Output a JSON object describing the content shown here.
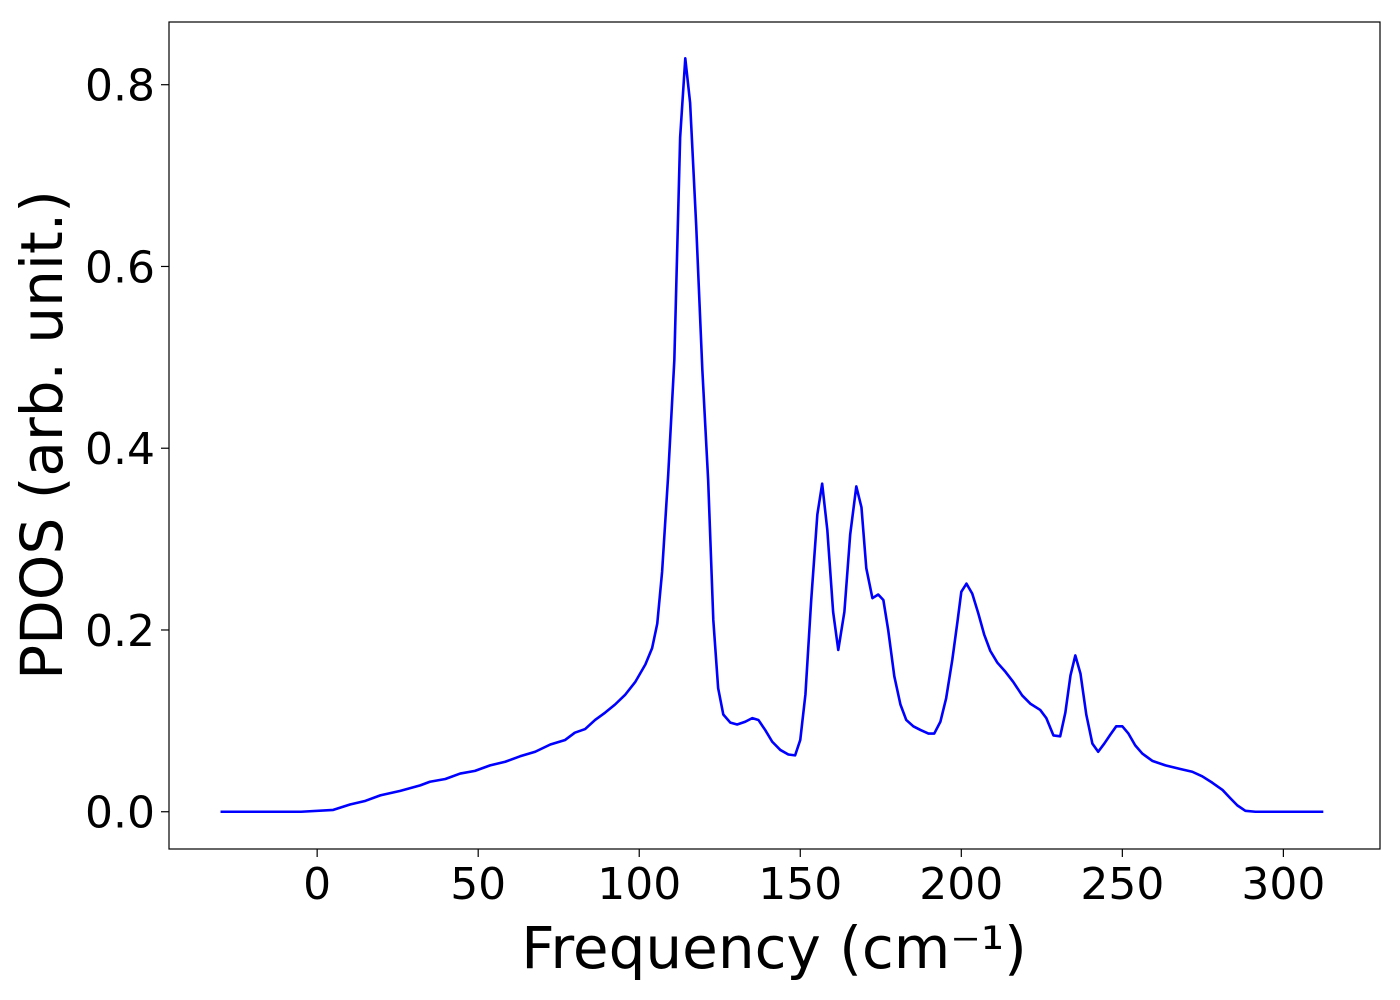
{
  "chart_data": {
    "type": "line",
    "xlabel": "Frequency (cm⁻¹)",
    "ylabel": "PDOS (arb. unit.)",
    "xlim": [
      -46,
      330
    ],
    "ylim": [
      -0.041,
      0.869
    ],
    "xticks": [
      0,
      50,
      100,
      150,
      200,
      250,
      300
    ],
    "yticks": [
      {
        "value": 0,
        "label": "0.0"
      },
      {
        "value": 0.2,
        "label": "0.2"
      },
      {
        "value": 0.4,
        "label": "0.4"
      },
      {
        "value": 0.6,
        "label": "0.6"
      },
      {
        "value": 0.8,
        "label": "0.8"
      }
    ],
    "color": "#0000ff",
    "x": [
      -30,
      -5,
      5,
      10.2,
      15,
      19.6,
      25.8,
      32,
      35,
      39.8,
      44.4,
      49,
      53.7,
      58.4,
      63,
      67.7,
      72.4,
      77,
      80,
      83.2,
      86.3,
      89.4,
      92.5,
      95.7,
      98.8,
      101.9,
      104,
      105.6,
      107.1,
      109,
      110.9,
      112.7,
      114.3,
      115.8,
      117.7,
      119.6,
      121.4,
      123,
      124.5,
      126.1,
      128.3,
      130.4,
      132.9,
      135.1,
      137,
      139.1,
      141.3,
      143.8,
      146.3,
      148.4,
      150,
      151.6,
      153.4,
      155.3,
      156.8,
      158.4,
      160.2,
      161.8,
      163.7,
      165.5,
      167.4,
      169,
      170.5,
      172.4,
      174.2,
      175.8,
      177.3,
      179.2,
      181.1,
      182.9,
      185.1,
      187.3,
      189.8,
      191.6,
      193.5,
      195.3,
      197.2,
      198.8,
      200,
      201.6,
      203.4,
      205.3,
      207.1,
      209,
      211.2,
      213.7,
      216.1,
      218.9,
      221.4,
      224.5,
      226.4,
      228.6,
      230.7,
      232.3,
      233.9,
      235.4,
      237,
      238.8,
      240.7,
      242.5,
      244.4,
      246.3,
      248.1,
      250,
      251.9,
      254,
      256.2,
      259.3,
      263.4,
      268,
      271.7,
      274.8,
      277.9,
      281.1,
      283.5,
      285.7,
      288.2,
      291.3,
      312.4
    ],
    "values": [
      0,
      0,
      0.002,
      0.008,
      0.012,
      0.018,
      0.023,
      0.029,
      0.033,
      0.036,
      0.042,
      0.045,
      0.051,
      0.055,
      0.061,
      0.066,
      0.074,
      0.079,
      0.087,
      0.091,
      0.101,
      0.109,
      0.118,
      0.129,
      0.143,
      0.162,
      0.18,
      0.207,
      0.264,
      0.371,
      0.497,
      0.742,
      0.829,
      0.78,
      0.644,
      0.486,
      0.365,
      0.211,
      0.136,
      0.107,
      0.098,
      0.096,
      0.099,
      0.103,
      0.101,
      0.09,
      0.077,
      0.068,
      0.063,
      0.062,
      0.079,
      0.129,
      0.233,
      0.327,
      0.361,
      0.31,
      0.22,
      0.178,
      0.22,
      0.305,
      0.358,
      0.335,
      0.268,
      0.235,
      0.239,
      0.233,
      0.2,
      0.149,
      0.118,
      0.101,
      0.094,
      0.09,
      0.086,
      0.086,
      0.099,
      0.125,
      0.167,
      0.209,
      0.242,
      0.251,
      0.24,
      0.218,
      0.195,
      0.177,
      0.164,
      0.154,
      0.143,
      0.128,
      0.119,
      0.112,
      0.103,
      0.084,
      0.083,
      0.109,
      0.15,
      0.172,
      0.152,
      0.107,
      0.075,
      0.066,
      0.075,
      0.085,
      0.094,
      0.094,
      0.086,
      0.073,
      0.064,
      0.056,
      0.051,
      0.047,
      0.044,
      0.039,
      0.032,
      0.024,
      0.015,
      0.007,
      0.001,
      0,
      0
    ]
  }
}
